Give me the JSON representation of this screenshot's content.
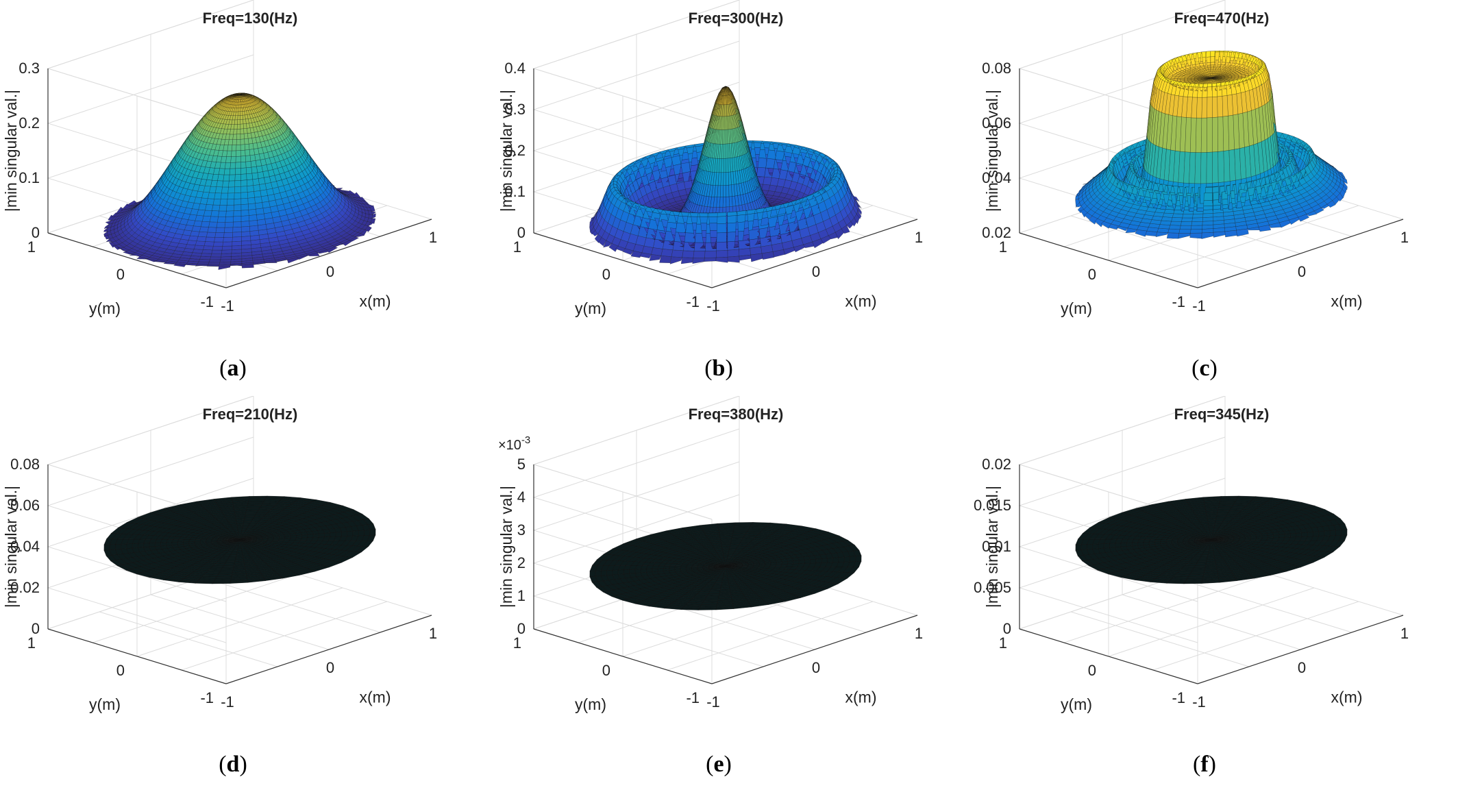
{
  "figure": {
    "description_labels_only": true
  },
  "chart_data": [
    {
      "type": "surface3d",
      "label": "(a)",
      "title": "Freq=130(Hz)",
      "frequency_hz": 130,
      "xlabel": "x(m)",
      "ylabel": "y(m)",
      "zlabel": "|min singular val.|",
      "xlim": [
        -1,
        1
      ],
      "ylim": [
        -1,
        1
      ],
      "zlim": [
        0,
        0.3
      ],
      "xticks": [
        "-1",
        "0",
        "1"
      ],
      "yticks": [
        "-1",
        "0",
        "1"
      ],
      "zticks": [
        "0",
        "0.1",
        "0.2",
        "0.3"
      ],
      "exponent": "",
      "shape": "dome",
      "peak": 0.24,
      "outer_value": 0.005,
      "grid": true
    },
    {
      "type": "surface3d",
      "label": "(b)",
      "title": "Freq=300(Hz)",
      "frequency_hz": 300,
      "xlabel": "x(m)",
      "ylabel": "y(m)",
      "zlabel": "|min singular val.|",
      "xlim": [
        -1,
        1
      ],
      "ylim": [
        -1,
        1
      ],
      "zlim": [
        0,
        0.4
      ],
      "xticks": [
        "-1",
        "0",
        "1"
      ],
      "yticks": [
        "-1",
        "0",
        "1"
      ],
      "zticks": [
        "0",
        "0.1",
        "0.2",
        "0.3",
        "0.4"
      ],
      "exponent": "",
      "shape": "central-peak-with-ring",
      "peak": 0.34,
      "ring_value": 0.12,
      "ring_radius": 0.82,
      "outer_value": 0.005,
      "grid": true
    },
    {
      "type": "surface3d",
      "label": "(c)",
      "title": "Freq=470(Hz)",
      "frequency_hz": 470,
      "xlabel": "x(m)",
      "ylabel": "y(m)",
      "zlabel": "|min singular val.|",
      "xlim": [
        -1,
        1
      ],
      "ylim": [
        -1,
        1
      ],
      "zlim": [
        0.02,
        0.08
      ],
      "xticks": [
        "-1",
        "0",
        "1"
      ],
      "yticks": [
        "-1",
        "0",
        "1"
      ],
      "zticks": [
        "0.02",
        "0.04",
        "0.06",
        "0.08"
      ],
      "exponent": "",
      "shape": "plateau-with-flange",
      "peak": 0.078,
      "plateau_value": 0.074,
      "flange_value": 0.04,
      "outer_value": 0.02,
      "grid": true
    },
    {
      "type": "surface3d",
      "label": "(d)",
      "title": "Freq=210(Hz)",
      "frequency_hz": 210,
      "xlabel": "x(m)",
      "ylabel": "y(m)",
      "zlabel": "|min singular val.|",
      "xlim": [
        -1,
        1
      ],
      "ylim": [
        -1,
        1
      ],
      "zlim": [
        0,
        0.08
      ],
      "xticks": [
        "-1",
        "0",
        "1"
      ],
      "yticks": [
        "-1",
        "0",
        "1"
      ],
      "zticks": [
        "0",
        "0.02",
        "0.04",
        "0.06",
        "0.08"
      ],
      "exponent": "",
      "shape": "flat-disc",
      "value": 0.04,
      "grid": true
    },
    {
      "type": "surface3d",
      "label": "(e)",
      "title": "Freq=380(Hz)",
      "frequency_hz": 380,
      "xlabel": "x(m)",
      "ylabel": "y(m)",
      "zlabel": "|min singular val.|",
      "xlim": [
        -1,
        1
      ],
      "ylim": [
        -1,
        1
      ],
      "zlim": [
        0,
        5
      ],
      "xticks": [
        "-1",
        "0",
        "1"
      ],
      "yticks": [
        "-1",
        "0",
        "1"
      ],
      "zticks": [
        "0",
        "1",
        "2",
        "3",
        "4",
        "5"
      ],
      "exponent_base": "×10",
      "exponent_power": "-3",
      "shape": "flat-disc",
      "value": 1.7,
      "grid": true
    },
    {
      "type": "surface3d",
      "label": "(f)",
      "title": "Freq=345(Hz)",
      "frequency_hz": 345,
      "xlabel": "x(m)",
      "ylabel": "y(m)",
      "zlabel": "|min singular val.|",
      "xlim": [
        -1,
        1
      ],
      "ylim": [
        -1,
        1
      ],
      "zlim": [
        0,
        0.02
      ],
      "xticks": [
        "-1",
        "0",
        "1"
      ],
      "yticks": [
        "-1",
        "0",
        "1"
      ],
      "zticks": [
        "0",
        "0.005",
        "0.01",
        "0.015",
        "0.02"
      ],
      "exponent": "",
      "shape": "flat-disc",
      "value": 0.01,
      "grid": true
    }
  ]
}
